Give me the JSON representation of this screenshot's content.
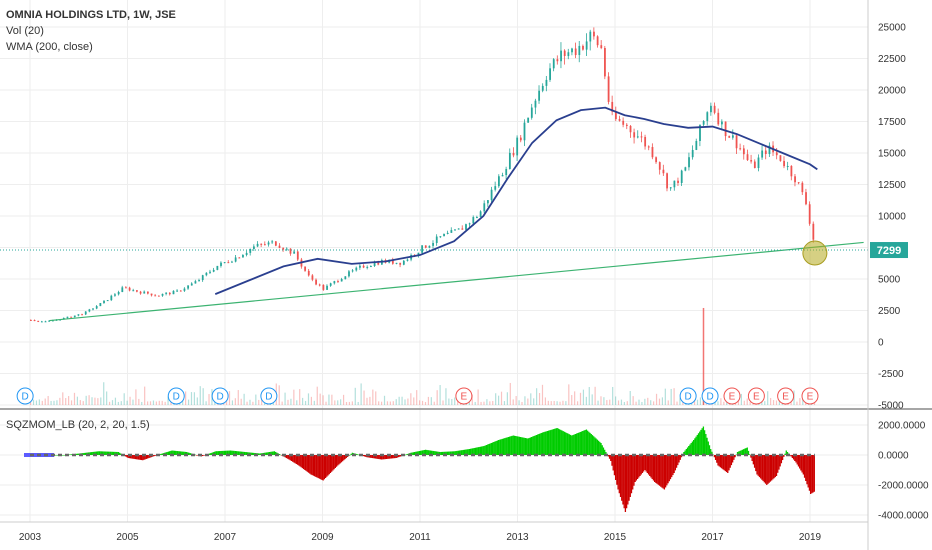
{
  "header": {
    "title": "OMNIA HOLDINGS LTD, 1W, JSE",
    "indicator_vol": "Vol (20)",
    "indicator_wma": "WMA (200, close)"
  },
  "lower_pane": {
    "indicator_label": "SQZMOM_LB (20, 2, 20, 1.5)"
  },
  "price_tag": {
    "value": "7299",
    "color": "#26a69a"
  },
  "colors": {
    "up": "#26a69a",
    "down": "#ef5350",
    "wma": "#2a3f8f",
    "trend": "#3cb371",
    "mom_up": "#00cc00",
    "mom_down": "#cc0000",
    "grid": "#eeeeee"
  },
  "chart_data": [
    {
      "type": "candlestick",
      "title": "OMNIA HOLDINGS LTD, 1W, JSE",
      "x_ticks": [
        "2003",
        "2005",
        "2007",
        "2009",
        "2011",
        "2013",
        "2015",
        "2017",
        "2019"
      ],
      "y_ticks": [
        "25000",
        "22500",
        "20000",
        "17500",
        "15000",
        "12500",
        "10000",
        "7500",
        "5000",
        "2500",
        "0",
        "-2500",
        "-5000"
      ],
      "ylim": [
        -5000,
        26000
      ],
      "xlim": [
        2002.9,
        2020.1
      ],
      "price": {
        "x": [
          2002.9,
          2003.3,
          2003.7,
          2004.1,
          2004.5,
          2004.9,
          2005.2,
          2005.6,
          2006.0,
          2006.4,
          2006.8,
          2007.2,
          2007.6,
          2008.0,
          2008.4,
          2008.7,
          2009.0,
          2009.4,
          2009.8,
          2010.2,
          2010.6,
          2011.0,
          2011.4,
          2011.8,
          2012.2,
          2012.6,
          2013.0,
          2013.3,
          2013.6,
          2013.9,
          2014.2,
          2014.5,
          2014.7,
          2014.9,
          2015.2,
          2015.5,
          2015.8,
          2016.1,
          2016.4,
          2016.7,
          2016.95,
          2017.2,
          2017.5,
          2017.8,
          2018.1,
          2018.4,
          2018.7,
          2018.9,
          2019.05,
          2019.1
        ],
        "close": [
          1800,
          1600,
          1900,
          2300,
          3200,
          4300,
          4000,
          3700,
          4000,
          4800,
          6000,
          6700,
          7600,
          7900,
          7000,
          5200,
          4200,
          5200,
          6000,
          6400,
          6300,
          7400,
          8300,
          8900,
          10200,
          13000,
          16000,
          19000,
          21500,
          22800,
          23300,
          24300,
          23300,
          17800,
          17200,
          16200,
          14800,
          12100,
          13500,
          16500,
          19000,
          17000,
          15700,
          13800,
          15400,
          14500,
          12900,
          11000,
          8200,
          7300
        ],
        "high_low_spread": 500
      },
      "wma": {
        "x": [
          2006.8,
          2007.5,
          2008.2,
          2008.9,
          2009.6,
          2010.3,
          2011.0,
          2011.7,
          2012.3,
          2012.8,
          2013.3,
          2013.8,
          2014.3,
          2014.8,
          2015.2,
          2015.6,
          2016.0,
          2016.5,
          2017.0,
          2017.5,
          2018.0,
          2018.5,
          2019.0,
          2019.15
        ],
        "y": [
          3800,
          4900,
          6000,
          6600,
          6200,
          6400,
          6900,
          8000,
          10000,
          13000,
          15800,
          17600,
          18400,
          18600,
          18000,
          17700,
          17300,
          17000,
          17100,
          16500,
          15700,
          14900,
          14100,
          13700
        ]
      },
      "trendline": {
        "x": [
          2003.4,
          2020.1
        ],
        "y": [
          1700,
          7900
        ]
      },
      "last_price": 7299,
      "volume": {
        "spike": {
          "x": 2016.8,
          "value": 2700
        },
        "baseline": -5000
      },
      "events": [
        {
          "x": 2002.9,
          "label": "D"
        },
        {
          "x": 2006.0,
          "label": "D"
        },
        {
          "x": 2006.9,
          "label": "D"
        },
        {
          "x": 2007.9,
          "label": "D"
        },
        {
          "x": 2011.9,
          "label": "E"
        },
        {
          "x": 2016.5,
          "label": "D"
        },
        {
          "x": 2016.95,
          "label": "D"
        },
        {
          "x": 2017.4,
          "label": "E"
        },
        {
          "x": 2017.9,
          "label": "E"
        },
        {
          "x": 2018.5,
          "label": "E"
        },
        {
          "x": 2019.0,
          "label": "E"
        }
      ]
    },
    {
      "type": "area",
      "title": "SQZMOM_LB (20, 2, 20, 1.5)",
      "y_ticks": [
        "2000.0000",
        "0.0000",
        "-2000.0000",
        "-4000.0000"
      ],
      "ylim": [
        -4000,
        2600
      ],
      "x": [
        2002.9,
        2003.3,
        2003.7,
        2004.0,
        2004.4,
        2004.8,
        2005.0,
        2005.3,
        2005.6,
        2005.9,
        2006.2,
        2006.5,
        2006.8,
        2007.1,
        2007.4,
        2007.7,
        2008.0,
        2008.3,
        2008.5,
        2008.75,
        2009.0,
        2009.3,
        2009.6,
        2009.9,
        2010.2,
        2010.5,
        2010.8,
        2011.1,
        2011.4,
        2011.7,
        2012.0,
        2012.3,
        2012.6,
        2012.9,
        2013.2,
        2013.5,
        2013.8,
        2014.1,
        2014.4,
        2014.7,
        2014.9,
        2015.05,
        2015.2,
        2015.4,
        2015.6,
        2015.8,
        2016.0,
        2016.2,
        2016.4,
        2016.6,
        2016.8,
        2016.95,
        2017.1,
        2017.3,
        2017.5,
        2017.7,
        2017.9,
        2018.1,
        2018.3,
        2018.5,
        2018.7,
        2018.85,
        2019.0,
        2019.1
      ],
      "values": [
        0,
        0,
        0,
        100,
        250,
        200,
        -200,
        -350,
        0,
        300,
        200,
        -100,
        250,
        300,
        200,
        100,
        250,
        -300,
        -700,
        -1300,
        -1700,
        -700,
        150,
        -150,
        -300,
        -200,
        150,
        350,
        200,
        250,
        400,
        600,
        1000,
        1300,
        1100,
        1500,
        1800,
        1300,
        1700,
        800,
        -400,
        -2300,
        -3800,
        -1800,
        -1000,
        -1800,
        -2300,
        -1200,
        200,
        1000,
        1900,
        400,
        -700,
        -1200,
        200,
        500,
        -1300,
        -2000,
        -1400,
        300,
        -500,
        -1300,
        -2600,
        -2400
      ]
    }
  ]
}
